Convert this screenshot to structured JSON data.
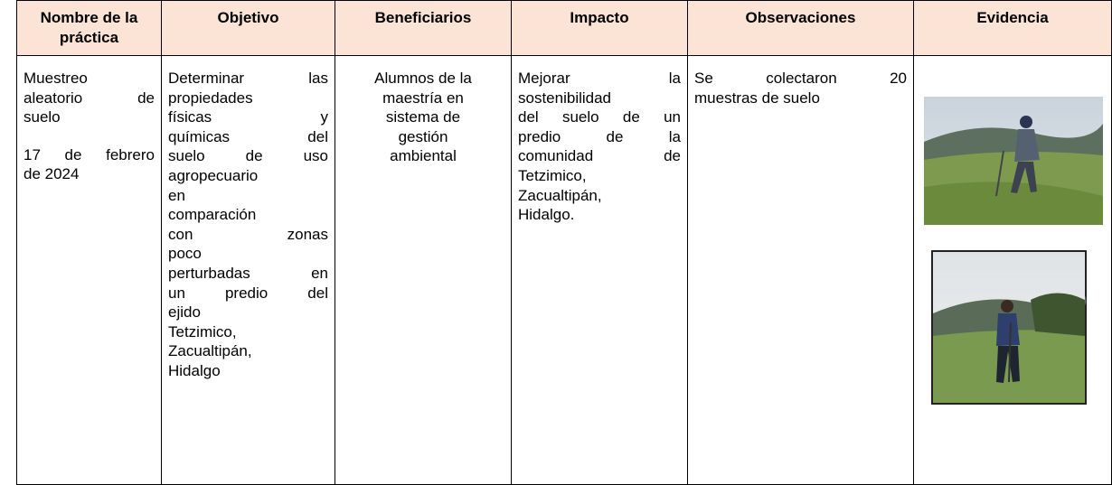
{
  "table": {
    "headers": [
      "Nombre de la práctica",
      "Objetivo",
      "Beneficiarios",
      "Impacto",
      "Observaciones",
      "Evidencia"
    ],
    "rows": [
      {
        "cells": [
          {
            "align": "justify",
            "paragraphs": [
              [
                "Muestreo",
                "aleatorio de",
                "suelo"
              ],
              [
                "17 de febrero",
                "de 2024"
              ]
            ]
          },
          {
            "align": "justify",
            "paragraphs": [
              [
                "Determinar las",
                "propiedades",
                "físicas y",
                "químicas del",
                "suelo de uso",
                "agropecuario",
                "en",
                "comparación",
                "con zonas",
                "poco",
                "perturbadas en",
                "un predio del",
                "ejido",
                "Tetzimico,",
                "Zacualtipán,",
                "Hidalgo"
              ]
            ]
          },
          {
            "align": "center",
            "paragraphs": [
              [
                "Alumnos de la",
                "maestría en",
                "sistema de",
                "gestión",
                "ambiental"
              ]
            ]
          },
          {
            "align": "justify",
            "paragraphs": [
              [
                "Mejorar la",
                "sostenibilidad",
                "del suelo de un",
                "predio de la",
                "comunidad de",
                "Tetzimico,",
                "Zacualtipán,",
                "Hidalgo."
              ]
            ]
          },
          {
            "align": "justify",
            "paragraphs": [
              [
                "Se colectaron 20",
                "muestras de suelo"
              ]
            ]
          }
        ]
      }
    ]
  }
}
